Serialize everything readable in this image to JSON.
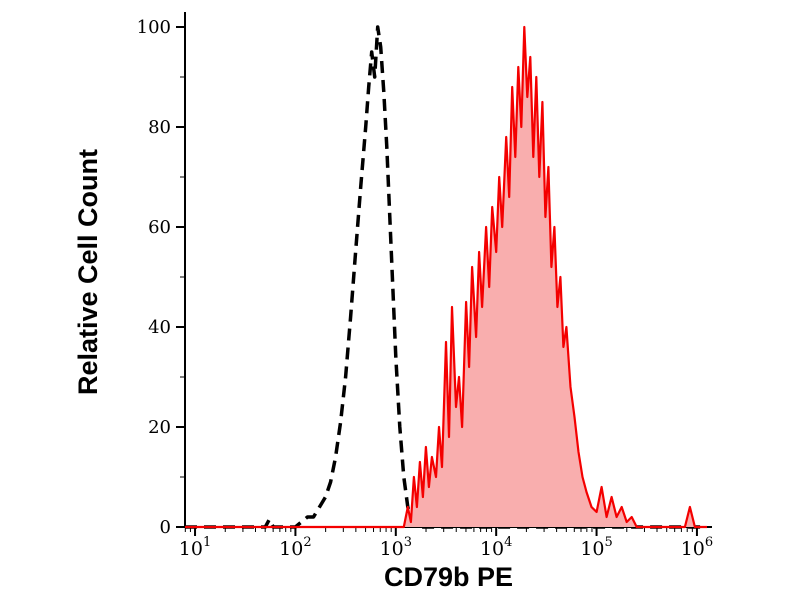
{
  "chart_data": {
    "type": "area",
    "subtype": "flow-cytometry-histogram-overlay",
    "title": "",
    "xlabel": "CD79b PE",
    "ylabel": "Relative Cell Count",
    "x_scale": "log10",
    "x_range_log10": [
      0.9,
      6.15
    ],
    "x_ticks_exponents": [
      1,
      2,
      3,
      4,
      5,
      6
    ],
    "x_tick_base": "10",
    "y_ticks": [
      0,
      20,
      40,
      60,
      80,
      100
    ],
    "ylim": [
      0,
      103
    ],
    "grid": false,
    "legend": "none",
    "background": "#ffffff",
    "axis_color": "#000000",
    "series": [
      {
        "name": "dashed-control",
        "style": "dashed",
        "color": "#000000",
        "fill": "none",
        "dash": "12 7",
        "stroke_width": 3.5,
        "points_log10_x_y": [
          [
            0.9,
            0
          ],
          [
            1.7,
            0
          ],
          [
            1.74,
            1.5
          ],
          [
            1.78,
            0
          ],
          [
            2.0,
            0
          ],
          [
            2.06,
            1
          ],
          [
            2.12,
            2
          ],
          [
            2.18,
            2
          ],
          [
            2.24,
            4
          ],
          [
            2.3,
            6
          ],
          [
            2.35,
            9
          ],
          [
            2.4,
            14
          ],
          [
            2.45,
            21
          ],
          [
            2.5,
            30
          ],
          [
            2.55,
            42
          ],
          [
            2.6,
            55
          ],
          [
            2.65,
            68
          ],
          [
            2.7,
            80
          ],
          [
            2.73,
            88
          ],
          [
            2.76,
            95
          ],
          [
            2.79,
            90
          ],
          [
            2.82,
            100
          ],
          [
            2.85,
            96
          ],
          [
            2.88,
            87
          ],
          [
            2.91,
            76
          ],
          [
            2.94,
            62
          ],
          [
            2.97,
            48
          ],
          [
            3.0,
            34
          ],
          [
            3.04,
            20
          ],
          [
            3.08,
            10
          ],
          [
            3.12,
            4
          ],
          [
            3.16,
            1
          ],
          [
            3.2,
            0
          ],
          [
            6.1,
            0
          ]
        ]
      },
      {
        "name": "red-filled-stained",
        "style": "solid",
        "color": "#f40000",
        "fill": "#f9aeae",
        "dash": "none",
        "stroke_width": 2.2,
        "points_log10_x_y": [
          [
            0.9,
            0
          ],
          [
            3.08,
            0
          ],
          [
            3.12,
            4
          ],
          [
            3.15,
            1
          ],
          [
            3.18,
            10
          ],
          [
            3.21,
            4
          ],
          [
            3.24,
            13
          ],
          [
            3.27,
            6
          ],
          [
            3.3,
            16
          ],
          [
            3.33,
            8
          ],
          [
            3.36,
            14
          ],
          [
            3.4,
            10
          ],
          [
            3.43,
            20
          ],
          [
            3.46,
            12
          ],
          [
            3.5,
            37
          ],
          [
            3.53,
            18
          ],
          [
            3.56,
            44
          ],
          [
            3.6,
            24
          ],
          [
            3.63,
            30
          ],
          [
            3.66,
            20
          ],
          [
            3.7,
            45
          ],
          [
            3.73,
            32
          ],
          [
            3.76,
            52
          ],
          [
            3.8,
            38
          ],
          [
            3.83,
            55
          ],
          [
            3.86,
            44
          ],
          [
            3.9,
            60
          ],
          [
            3.93,
            48
          ],
          [
            3.96,
            64
          ],
          [
            4.0,
            55
          ],
          [
            4.03,
            70
          ],
          [
            4.06,
            60
          ],
          [
            4.1,
            78
          ],
          [
            4.13,
            66
          ],
          [
            4.16,
            88
          ],
          [
            4.19,
            74
          ],
          [
            4.22,
            92
          ],
          [
            4.25,
            80
          ],
          [
            4.28,
            100
          ],
          [
            4.31,
            86
          ],
          [
            4.34,
            94
          ],
          [
            4.37,
            74
          ],
          [
            4.4,
            90
          ],
          [
            4.43,
            70
          ],
          [
            4.46,
            85
          ],
          [
            4.49,
            62
          ],
          [
            4.52,
            72
          ],
          [
            4.55,
            52
          ],
          [
            4.58,
            60
          ],
          [
            4.61,
            44
          ],
          [
            4.64,
            50
          ],
          [
            4.67,
            36
          ],
          [
            4.7,
            40
          ],
          [
            4.74,
            28
          ],
          [
            4.78,
            22
          ],
          [
            4.82,
            15
          ],
          [
            4.86,
            10
          ],
          [
            4.9,
            7
          ],
          [
            4.95,
            4
          ],
          [
            5.0,
            3
          ],
          [
            5.05,
            8
          ],
          [
            5.1,
            2
          ],
          [
            5.15,
            6
          ],
          [
            5.2,
            2
          ],
          [
            5.25,
            4
          ],
          [
            5.3,
            1
          ],
          [
            5.35,
            2
          ],
          [
            5.4,
            0
          ],
          [
            5.88,
            0
          ],
          [
            5.93,
            4
          ],
          [
            5.98,
            0
          ],
          [
            6.1,
            0
          ]
        ]
      }
    ]
  }
}
